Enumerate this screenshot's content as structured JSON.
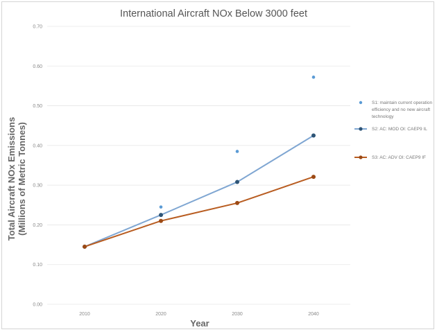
{
  "chart_data": {
    "type": "line",
    "title": "International Aircraft NOx Below 3000 feet",
    "xlabel": "Year",
    "ylabel_line1": "Total Aircraft NOx Emissions",
    "ylabel_line2": "(Millions of Metric Tonnes)",
    "categories": [
      "2010",
      "2020",
      "2030",
      "2040"
    ],
    "y_ticks": [
      "0.00",
      "0.10",
      "0.20",
      "0.30",
      "0.40",
      "0.50",
      "0.60",
      "0.70"
    ],
    "ylim": [
      0,
      0.7
    ],
    "grid": true,
    "legend_position": "right",
    "series": [
      {
        "name_lines": [
          "S1: maintain current operation",
          "efficiency and no new aircraft",
          "technology"
        ],
        "values": [
          0.145,
          0.245,
          0.385,
          0.572
        ],
        "color": "#5b9bd5",
        "style": "markers"
      },
      {
        "name_lines": [
          "S2: AC: MOD OI: CAEP9 IL"
        ],
        "values": [
          0.145,
          0.225,
          0.308,
          0.425
        ],
        "color": "#7fa6d2",
        "marker_color": "#2e5476",
        "style": "line"
      },
      {
        "name_lines": [
          "S3: AC: ADV OI: CAEP9 IF"
        ],
        "values": [
          0.145,
          0.21,
          0.255,
          0.321
        ],
        "color": "#b85c20",
        "marker_color": "#9c4a15",
        "style": "line"
      }
    ]
  }
}
